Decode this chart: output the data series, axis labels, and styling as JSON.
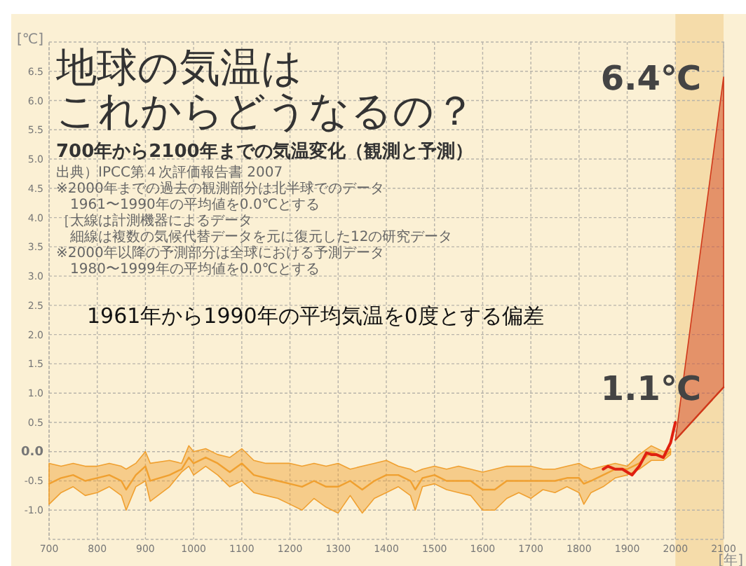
{
  "chart_data": {
    "type": "line",
    "title": "地球の気温は",
    "subtitle": "これからどうなるの？",
    "ylabel": "[℃]",
    "xlabel": "[年]",
    "annotations": [
      "700年から2100年までの気温変化（観測と予測）",
      "出典）IPCC第４次評価報告書 2007",
      "※2000年までの過去の観測部分は北半球でのデータ",
      "　1961〜1990年の平均値を0.0℃とする",
      "［太線は計測機器によるデータ",
      "　細線は複数の気候代替データを元に復元した12の研究データ",
      "※2000年以降の予測部分は全球における予測データ",
      "　1980〜1999年の平均値を0.0℃とする",
      "1961年から1990年の平均気温を0度とする偏差",
      {
        "text": "6.4℃",
        "x": 2100,
        "y": 6.4
      },
      {
        "text": "1.1℃",
        "x": 2100,
        "y": 1.1
      }
    ],
    "xlim": [
      700,
      2100
    ],
    "ylim": [
      -1.5,
      7.0
    ],
    "xticks": [
      700,
      800,
      900,
      1000,
      1100,
      1200,
      1300,
      1400,
      1500,
      1600,
      1700,
      1800,
      1900,
      2000,
      2100
    ],
    "yticks": [
      {
        "value": -1.0,
        "label": "-1.0"
      },
      {
        "value": -0.5,
        "label": "-0.5"
      },
      {
        "value": 0.0,
        "label": "0.0"
      },
      0.5,
      {
        "value": 1.0,
        "label": "1.0"
      },
      1.5,
      {
        "value": 2.0,
        "label": "2.0"
      },
      2.5,
      {
        "value": 3.0,
        "label": "3.0"
      },
      3.5,
      {
        "value": 4.0,
        "label": "4.0"
      },
      4.5,
      {
        "value": 5.0,
        "label": "5.0"
      },
      5.5,
      {
        "value": 6.0,
        "label": "6.0"
      },
      6.5
    ],
    "grid": true,
    "bands": [
      {
        "axis": "x",
        "from": 2000,
        "to": 2100,
        "color": "#f5dcaa"
      }
    ],
    "series": [
      {
        "color": "#f0a030",
        "x": [
          700,
          725,
          750,
          775,
          800,
          825,
          850,
          860,
          880,
          900,
          910,
          950,
          975,
          990,
          1000,
          1025,
          1050,
          1075,
          1100,
          1125,
          1150,
          1175,
          1200,
          1225,
          1250,
          1275,
          1300,
          1325,
          1350,
          1375,
          1400,
          1425,
          1450,
          1460,
          1475,
          1500,
          1525,
          1550,
          1575,
          1600,
          1625,
          1650,
          1675,
          1700,
          1725,
          1750,
          1775,
          1800,
          1810,
          1825,
          1850,
          1875,
          1900,
          1925,
          1950,
          1975,
          1990
        ],
        "values": [
          -0.55,
          -0.45,
          -0.4,
          -0.5,
          -0.45,
          -0.4,
          -0.5,
          -0.65,
          -0.4,
          -0.25,
          -0.5,
          -0.4,
          -0.3,
          -0.1,
          -0.2,
          -0.1,
          -0.2,
          -0.35,
          -0.2,
          -0.4,
          -0.45,
          -0.5,
          -0.55,
          -0.6,
          -0.5,
          -0.6,
          -0.6,
          -0.5,
          -0.65,
          -0.5,
          -0.4,
          -0.4,
          -0.5,
          -0.65,
          -0.45,
          -0.4,
          -0.5,
          -0.5,
          -0.5,
          -0.65,
          -0.65,
          -0.5,
          -0.5,
          -0.5,
          -0.5,
          -0.5,
          -0.45,
          -0.45,
          -0.55,
          -0.5,
          -0.4,
          -0.3,
          -0.3,
          -0.2,
          0.0,
          -0.1,
          0.0
        ],
        "upper": [
          -0.2,
          -0.25,
          -0.2,
          -0.25,
          -0.25,
          -0.2,
          -0.25,
          -0.3,
          -0.2,
          0.0,
          -0.2,
          -0.15,
          -0.2,
          0.1,
          0.0,
          0.05,
          -0.05,
          -0.1,
          0.05,
          -0.15,
          -0.2,
          -0.2,
          -0.2,
          -0.25,
          -0.2,
          -0.25,
          -0.2,
          -0.3,
          -0.25,
          -0.2,
          -0.15,
          -0.25,
          -0.3,
          -0.35,
          -0.3,
          -0.25,
          -0.3,
          -0.25,
          -0.3,
          -0.35,
          -0.3,
          -0.25,
          -0.25,
          -0.25,
          -0.3,
          -0.3,
          -0.25,
          -0.2,
          -0.25,
          -0.3,
          -0.25,
          -0.2,
          -0.25,
          -0.05,
          0.1,
          0.0,
          0.05
        ],
        "lower": [
          -0.9,
          -0.7,
          -0.6,
          -0.75,
          -0.7,
          -0.6,
          -0.75,
          -1.0,
          -0.6,
          -0.5,
          -0.85,
          -0.6,
          -0.35,
          -0.25,
          -0.4,
          -0.25,
          -0.4,
          -0.6,
          -0.5,
          -0.7,
          -0.75,
          -0.8,
          -0.9,
          -1.0,
          -0.8,
          -0.95,
          -1.05,
          -0.75,
          -1.05,
          -0.8,
          -0.7,
          -0.6,
          -0.75,
          -1.0,
          -0.6,
          -0.55,
          -0.65,
          -0.7,
          -0.75,
          -1.0,
          -1.0,
          -0.8,
          -0.7,
          -0.8,
          -0.65,
          -0.7,
          -0.6,
          -0.7,
          -0.9,
          -0.7,
          -0.6,
          -0.45,
          -0.4,
          -0.3,
          -0.15,
          -0.15,
          -0.05
        ]
      },
      {
        "color": "#e02010",
        "x": [
          1850,
          1860,
          1875,
          1890,
          1900,
          1910,
          1925,
          1940,
          1950,
          1960,
          1975,
          1990,
          2000
        ],
        "values": [
          -0.3,
          -0.25,
          -0.3,
          -0.3,
          -0.35,
          -0.4,
          -0.25,
          -0.02,
          -0.05,
          -0.05,
          -0.1,
          0.15,
          0.5
        ]
      },
      {
        "color": "#d0381a",
        "x": [
          2000,
          2100
        ],
        "values": [
          0.2,
          1.1
        ],
        "lower": [
          0.2,
          1.1
        ],
        "upper": [
          0.2,
          6.4
        ]
      }
    ]
  }
}
